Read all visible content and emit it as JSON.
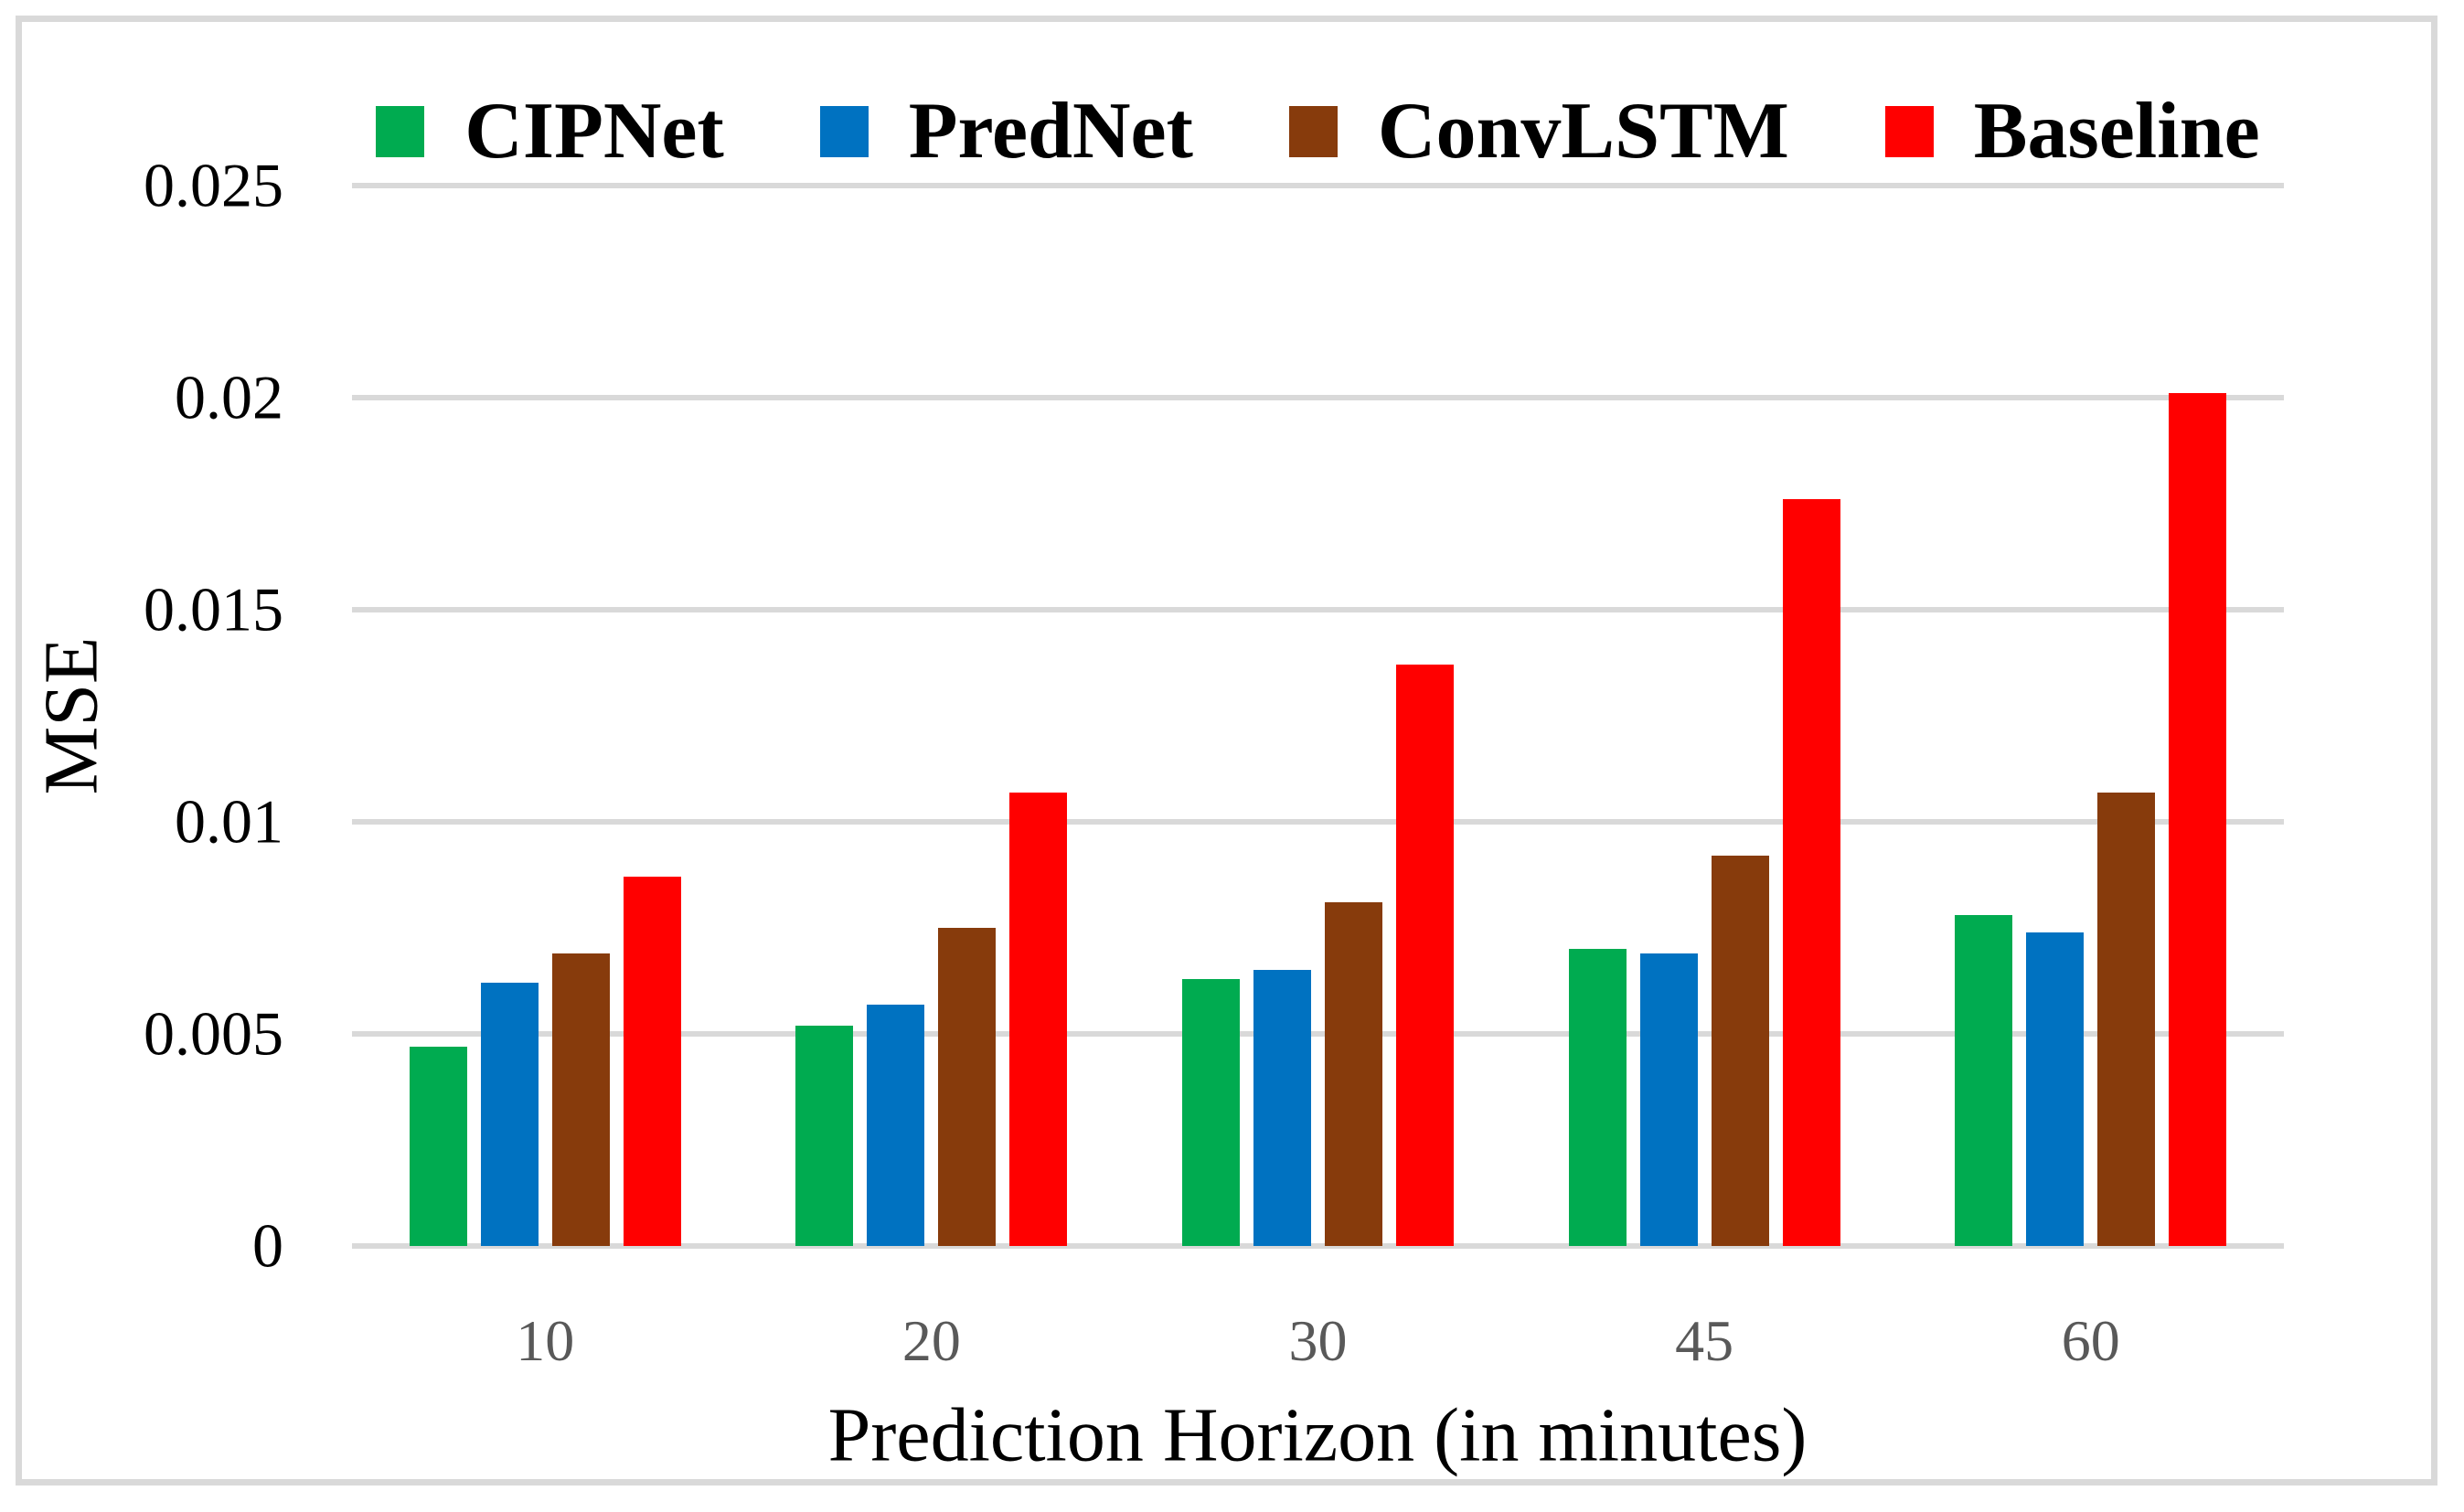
{
  "figure": {
    "xlabel": "Prediction Horizon (in minutes)",
    "ylabel": "MSE"
  },
  "colors": {
    "gridline": "#d9d9d9",
    "frame": "#d9d9d9",
    "x_tick_text": "#595959",
    "y_tick_text": "#000000"
  },
  "chart_data": {
    "type": "bar",
    "title": "",
    "xlabel": "Prediction Horizon (in minutes)",
    "ylabel": "MSE",
    "categories": [
      "10",
      "20",
      "30",
      "45",
      "60"
    ],
    "series": [
      {
        "name": "CIPNet",
        "color": "#00ab50",
        "values": [
          0.0047,
          0.0052,
          0.0063,
          0.007,
          0.0078
        ]
      },
      {
        "name": "PredNet",
        "color": "#0072c1",
        "values": [
          0.0062,
          0.0057,
          0.0065,
          0.0069,
          0.0074
        ]
      },
      {
        "name": "ConvLSTM",
        "color": "#873b0c",
        "values": [
          0.0069,
          0.0075,
          0.0081,
          0.0092,
          0.0107
        ]
      },
      {
        "name": "Baseline",
        "color": "#ff0000",
        "values": [
          0.0087,
          0.0107,
          0.0137,
          0.0176,
          0.0201
        ]
      }
    ],
    "ylim": [
      0,
      0.025
    ],
    "ytick_step": 0.005,
    "ytick_labels": [
      "0",
      "0.005",
      "0.01",
      "0.015",
      "0.02",
      "0.025"
    ],
    "grid": true,
    "legend_position": "top"
  }
}
